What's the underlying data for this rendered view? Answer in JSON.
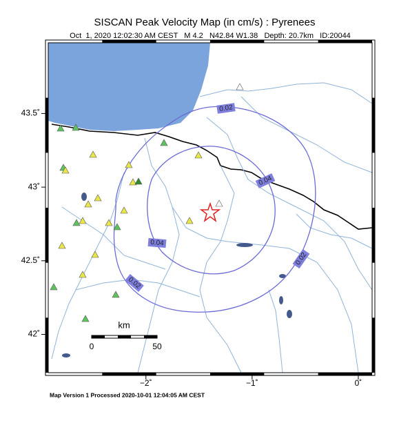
{
  "header": {
    "title": "SISCAN Peak Velocity Map (in cm/s) : Pyrenees",
    "subtitle": "Oct  1, 2020 12:02:30 AM CEST   M 4.2   N42.84 W1.38   Depth: 20.7km   ID:20044"
  },
  "map": {
    "xlim": [
      -2.92,
      0.13
    ],
    "ylim": [
      41.74,
      43.98
    ],
    "xticks": [
      {
        "value": -2,
        "label": "−2˚"
      },
      {
        "value": -1,
        "label": "−1˚"
      },
      {
        "value": 0,
        "label": "0˚"
      }
    ],
    "yticks": [
      {
        "value": 42,
        "label": "42˚"
      },
      {
        "value": 42.5,
        "label": "42.5˚"
      },
      {
        "value": 43,
        "label": "43˚"
      },
      {
        "value": 43.5,
        "label": "43.5˚"
      }
    ],
    "contour_labels": [
      0.02,
      0.04,
      0.04,
      0.02,
      0.02
    ]
  },
  "scale_bar": {
    "title": "km",
    "labels": [
      0,
      50
    ]
  },
  "footer": "Map Version 1 Processed 2020-10-01 12:04:05 AM CEST"
}
